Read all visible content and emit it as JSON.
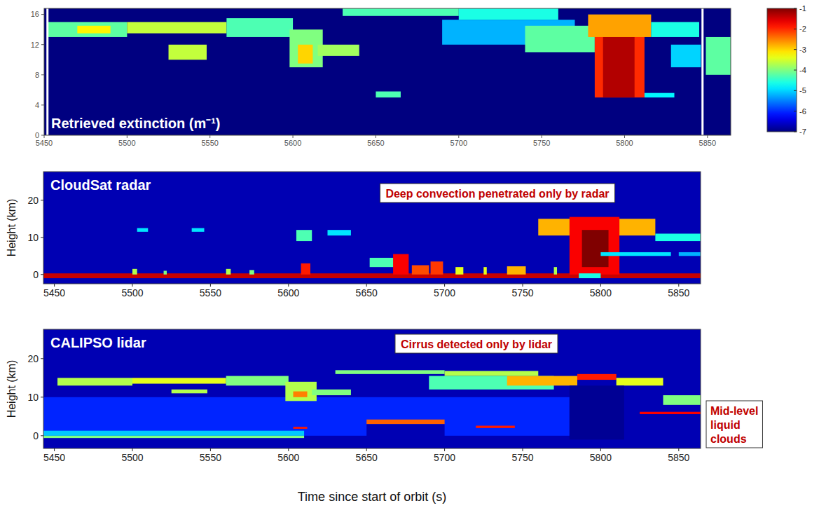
{
  "chart_data": [
    {
      "type": "heatmap",
      "title": "Retrieved extinction (m⁻¹)",
      "xlim": [
        5450,
        5864
      ],
      "xticks": [
        5450,
        5500,
        5550,
        5600,
        5650,
        5700,
        5750,
        5800,
        5850
      ],
      "ylim": [
        0,
        16.8
      ],
      "yticks": [
        0,
        4,
        8,
        12,
        16
      ],
      "zlim": [
        -7,
        -1
      ],
      "zticks": [
        -1,
        -2,
        -3,
        -4,
        -5,
        -6,
        -7
      ],
      "background": -7,
      "cells": [
        [
          5452,
          5500,
          13,
          15,
          -4.2
        ],
        [
          5470,
          5490,
          13.5,
          14.5,
          -3.2
        ],
        [
          5500,
          5560,
          13.5,
          15,
          -3.6
        ],
        [
          5560,
          5600,
          13,
          15.5,
          -4.3
        ],
        [
          5525,
          5548,
          10,
          12,
          -3.6
        ],
        [
          5598,
          5618,
          9,
          14,
          -4
        ],
        [
          5603,
          5612,
          9.5,
          12,
          -3
        ],
        [
          5615,
          5640,
          10.5,
          12,
          -3.8
        ],
        [
          5630,
          5700,
          15.8,
          17,
          -4.3
        ],
        [
          5700,
          5760,
          15.3,
          17,
          -4.6
        ],
        [
          5690,
          5770,
          12,
          15.3,
          -5.2
        ],
        [
          5740,
          5782,
          11,
          14.5,
          -4.2
        ],
        [
          5782,
          5812,
          5,
          15,
          -2
        ],
        [
          5787,
          5806,
          5,
          13,
          -1.3
        ],
        [
          5778,
          5816,
          13,
          16,
          -2.7
        ],
        [
          5816,
          5845,
          13,
          15,
          -4.6
        ],
        [
          5828,
          5846,
          9,
          12,
          -5
        ],
        [
          5849,
          5864,
          8,
          13,
          -4.2
        ],
        [
          5650,
          5665,
          5,
          5.8,
          -4.3
        ],
        [
          5812,
          5830,
          5,
          5.6,
          -4.8
        ]
      ],
      "gaps": [
        5452,
        5847
      ]
    },
    {
      "type": "heatmap",
      "title": "CloudSat radar",
      "ylabel": "Height (km)",
      "xlim": [
        5443,
        5864
      ],
      "xticks": [
        5450,
        5500,
        5550,
        5600,
        5650,
        5700,
        5750,
        5800,
        5850
      ],
      "ylim": [
        -2.5,
        27.7
      ],
      "yticks": [
        0,
        10,
        20
      ],
      "zlim": [
        0,
        1
      ],
      "background": 0.05,
      "annotations": [
        "Deep convection penetrated only by radar"
      ],
      "cells": [
        [
          5443,
          5864,
          -1,
          0.3,
          0.93
        ],
        [
          5503,
          5510,
          11.5,
          12.5,
          0.35
        ],
        [
          5538,
          5546,
          11.5,
          12.5,
          0.35
        ],
        [
          5605,
          5615,
          9,
          12,
          0.45
        ],
        [
          5625,
          5640,
          10.5,
          12,
          0.35
        ],
        [
          5608,
          5614,
          0,
          3,
          0.85
        ],
        [
          5652,
          5668,
          2,
          4.5,
          0.45
        ],
        [
          5667,
          5677,
          0,
          5.5,
          0.88
        ],
        [
          5679,
          5690,
          0,
          2.5,
          0.8
        ],
        [
          5691,
          5699,
          0,
          3.5,
          0.82
        ],
        [
          5707,
          5712,
          0,
          2,
          0.6
        ],
        [
          5740,
          5752,
          0,
          2.2,
          0.7
        ],
        [
          5500,
          5503,
          0,
          1.5,
          0.55
        ],
        [
          5560,
          5563,
          0,
          1.5,
          0.55
        ],
        [
          5575,
          5578,
          0,
          1.2,
          0.5
        ],
        [
          5520,
          5522,
          0,
          1,
          0.5
        ],
        [
          5725,
          5727,
          0,
          2,
          0.6
        ],
        [
          5770,
          5772,
          0,
          2,
          0.55
        ],
        [
          5760,
          5835,
          10.5,
          15,
          0.7
        ],
        [
          5780,
          5812,
          0,
          15.5,
          0.88
        ],
        [
          5788,
          5805,
          2,
          12,
          1.0
        ],
        [
          5786,
          5800,
          -1,
          0.3,
          0.4
        ],
        [
          5800,
          5845,
          5,
          6,
          0.35
        ],
        [
          5835,
          5864,
          9,
          11,
          0.4
        ],
        [
          5850,
          5864,
          5,
          6,
          0.3
        ]
      ]
    },
    {
      "type": "heatmap",
      "title": "CALIPSO lidar",
      "ylabel": "Height (km)",
      "xlabel": "Time since start of orbit (s)",
      "xlim": [
        5443,
        5864
      ],
      "xticks": [
        5450,
        5500,
        5550,
        5600,
        5650,
        5700,
        5750,
        5800,
        5850
      ],
      "ylim": [
        -3.3,
        27.6
      ],
      "yticks": [
        0,
        10,
        20
      ],
      "zlim": [
        0,
        1
      ],
      "background": 0.05,
      "annotations": [
        "Cirrus detected only by lidar",
        "Mid-level liquid clouds"
      ],
      "cells": [
        [
          5443,
          5780,
          0,
          10,
          0.16
        ],
        [
          5443,
          5610,
          0,
          1.3,
          0.32
        ],
        [
          5443,
          5610,
          -0.6,
          0,
          0.5
        ],
        [
          5452,
          5500,
          13,
          15,
          0.55
        ],
        [
          5500,
          5560,
          13.5,
          15,
          0.6
        ],
        [
          5560,
          5600,
          13,
          15.5,
          0.5
        ],
        [
          5525,
          5548,
          11,
          12,
          0.55
        ],
        [
          5598,
          5618,
          9,
          14,
          0.55
        ],
        [
          5603,
          5612,
          10,
          11.5,
          0.75
        ],
        [
          5615,
          5640,
          10.5,
          12,
          0.5
        ],
        [
          5630,
          5700,
          16,
          17,
          0.5
        ],
        [
          5700,
          5760,
          15.5,
          16.8,
          0.55
        ],
        [
          5690,
          5770,
          12,
          15.5,
          0.45
        ],
        [
          5740,
          5785,
          13,
          15.5,
          0.7
        ],
        [
          5785,
          5810,
          14.5,
          16,
          0.85
        ],
        [
          5810,
          5840,
          13,
          15,
          0.6
        ],
        [
          5780,
          5815,
          -1,
          13,
          0.02
        ],
        [
          5840,
          5864,
          8,
          10.5,
          0.5
        ],
        [
          5603,
          5612,
          1.8,
          2.3,
          0.85
        ],
        [
          5650,
          5700,
          3,
          4.2,
          0.78
        ],
        [
          5720,
          5745,
          2,
          2.6,
          0.85
        ],
        [
          5825,
          5864,
          5.6,
          6.2,
          0.88
        ],
        [
          5650,
          5700,
          -1,
          3,
          0.05
        ]
      ]
    }
  ]
}
